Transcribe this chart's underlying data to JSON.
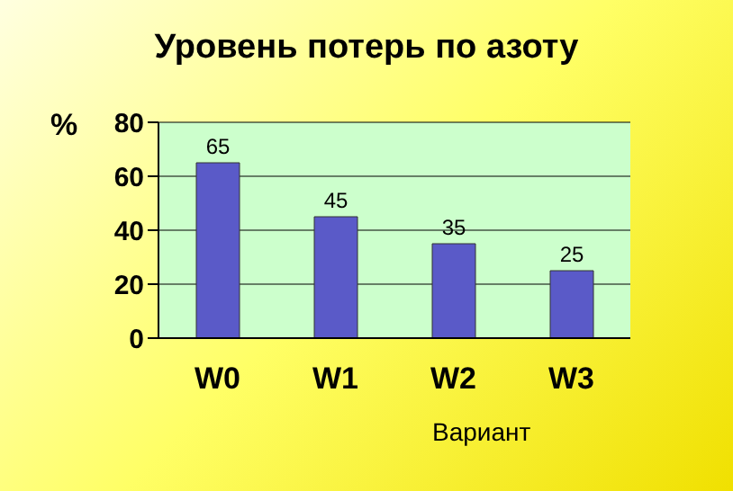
{
  "chart_data": {
    "type": "bar",
    "title": "Уровень потерь по азоту",
    "ylabel": "%",
    "xlabel": "Вариант",
    "categories": [
      "W0",
      "W1",
      "W2",
      "W3"
    ],
    "values": [
      65,
      45,
      35,
      25
    ],
    "color": "#5a5ac8",
    "ylim": [
      0,
      80
    ],
    "yticks": [
      0,
      20,
      40,
      60,
      80
    ],
    "grid": "y",
    "data_labels": true
  }
}
